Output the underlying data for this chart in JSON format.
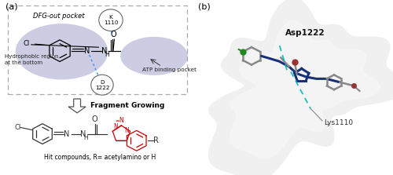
{
  "panel_a_label": "(a)",
  "panel_b_label": "(b)",
  "dfg_text": "DFG-out pocket",
  "hydrophobic_text": "Hydrophobic region\nat the bottom",
  "atp_text": "ATP binding pocket",
  "k1110_text": "K\n1110",
  "d1222_text": "D\n1222",
  "fragment_growing_text": "Fragment Growing",
  "hit_text": "Hit compounds, R= acetylamino or H",
  "asp1222_text": "Asp1222",
  "lys1110_text": "Lys1110",
  "bg_color": "#ffffff",
  "ellipse_color": "#8080bb",
  "ellipse_alpha": 0.4,
  "dashed_box_color": "#aaaaaa",
  "hbond_color": "#4499ff",
  "red_color": "#cc0000"
}
